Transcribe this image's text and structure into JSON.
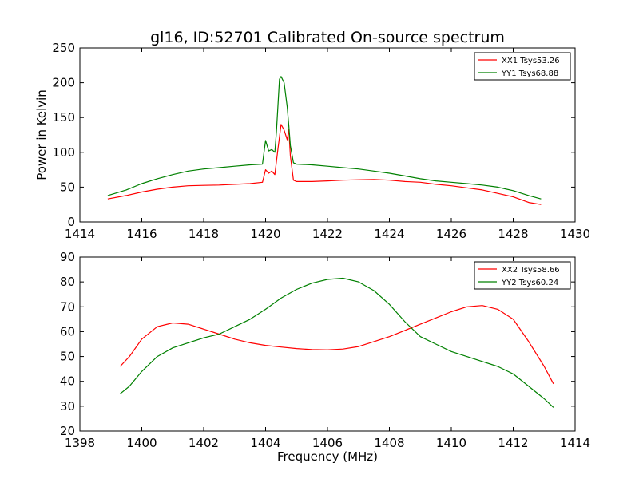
{
  "figure": {
    "title": "gl16, ID:52701 Calibrated On-source spectrum",
    "ylabel": "Power in Kelvin",
    "xlabel": "Frequency (MHz)"
  },
  "chart_data": [
    {
      "type": "line",
      "title": "gl16, ID:52701 Calibrated On-source spectrum",
      "xlabel": "",
      "ylabel": "Power in Kelvin",
      "xlim": [
        1414,
        1430
      ],
      "ylim": [
        0,
        250
      ],
      "xticks": [
        1414,
        1416,
        1418,
        1420,
        1422,
        1424,
        1426,
        1428,
        1430
      ],
      "yticks": [
        0,
        50,
        100,
        150,
        200,
        250
      ],
      "grid": false,
      "legend_position": "top-right",
      "series": [
        {
          "name": "XX1 Tsys53.26",
          "color": "#ff0000",
          "points": [
            [
              1414.9,
              33
            ],
            [
              1415.5,
              38
            ],
            [
              1416,
              43
            ],
            [
              1416.5,
              47
            ],
            [
              1417,
              50
            ],
            [
              1417.5,
              52
            ],
            [
              1418,
              52.5
            ],
            [
              1418.5,
              53
            ],
            [
              1419,
              54
            ],
            [
              1419.5,
              55
            ],
            [
              1419.9,
              57
            ],
            [
              1420.0,
              75
            ],
            [
              1420.1,
              70
            ],
            [
              1420.2,
              73
            ],
            [
              1420.3,
              68
            ],
            [
              1420.4,
              105
            ],
            [
              1420.5,
              140
            ],
            [
              1420.6,
              132
            ],
            [
              1420.7,
              118
            ],
            [
              1420.75,
              133
            ],
            [
              1420.8,
              95
            ],
            [
              1420.9,
              60
            ],
            [
              1421,
              58
            ],
            [
              1421.5,
              58
            ],
            [
              1422,
              59
            ],
            [
              1422.5,
              60
            ],
            [
              1423,
              60.5
            ],
            [
              1423.5,
              61
            ],
            [
              1424,
              60
            ],
            [
              1424.5,
              58
            ],
            [
              1425,
              57
            ],
            [
              1425.5,
              54
            ],
            [
              1426,
              52
            ],
            [
              1426.5,
              49
            ],
            [
              1427,
              46
            ],
            [
              1427.5,
              41
            ],
            [
              1428,
              36
            ],
            [
              1428.5,
              28
            ],
            [
              1428.9,
              25
            ]
          ]
        },
        {
          "name": "YY1 Tsys68.88",
          "color": "#008000",
          "points": [
            [
              1414.9,
              38
            ],
            [
              1415.5,
              46
            ],
            [
              1416,
              55
            ],
            [
              1416.5,
              62
            ],
            [
              1417,
              68
            ],
            [
              1417.5,
              73
            ],
            [
              1418,
              76
            ],
            [
              1418.5,
              78
            ],
            [
              1419,
              80
            ],
            [
              1419.5,
              82
            ],
            [
              1419.9,
              83
            ],
            [
              1420.0,
              117
            ],
            [
              1420.1,
              102
            ],
            [
              1420.2,
              104
            ],
            [
              1420.3,
              100
            ],
            [
              1420.35,
              130
            ],
            [
              1420.45,
              205
            ],
            [
              1420.5,
              209
            ],
            [
              1420.6,
              200
            ],
            [
              1420.7,
              165
            ],
            [
              1420.75,
              138
            ],
            [
              1420.8,
              110
            ],
            [
              1420.9,
              85
            ],
            [
              1421,
              83
            ],
            [
              1421.5,
              82
            ],
            [
              1422,
              80
            ],
            [
              1422.5,
              78
            ],
            [
              1423,
              76
            ],
            [
              1423.5,
              73
            ],
            [
              1424,
              70
            ],
            [
              1424.5,
              66
            ],
            [
              1425,
              62
            ],
            [
              1425.5,
              59
            ],
            [
              1426,
              57
            ],
            [
              1426.5,
              55
            ],
            [
              1427,
              53
            ],
            [
              1427.5,
              50
            ],
            [
              1428,
              45
            ],
            [
              1428.5,
              38
            ],
            [
              1428.9,
              33
            ]
          ]
        }
      ]
    },
    {
      "type": "line",
      "title": "",
      "xlabel": "Frequency (MHz)",
      "ylabel": "",
      "xlim": [
        1398,
        1414
      ],
      "ylim": [
        20,
        90
      ],
      "xticks": [
        1398,
        1400,
        1402,
        1404,
        1406,
        1408,
        1410,
        1412,
        1414
      ],
      "yticks": [
        20,
        30,
        40,
        50,
        60,
        70,
        80,
        90
      ],
      "grid": false,
      "legend_position": "top-right",
      "series": [
        {
          "name": "XX2 Tsys58.66",
          "color": "#ff0000",
          "points": [
            [
              1399.3,
              46
            ],
            [
              1399.6,
              50
            ],
            [
              1400,
              57
            ],
            [
              1400.5,
              62
            ],
            [
              1401,
              63.5
            ],
            [
              1401.5,
              63
            ],
            [
              1402,
              61
            ],
            [
              1402.5,
              59
            ],
            [
              1403,
              57
            ],
            [
              1403.5,
              55.5
            ],
            [
              1404,
              54.5
            ],
            [
              1404.5,
              53.8
            ],
            [
              1405,
              53.2
            ],
            [
              1405.5,
              52.8
            ],
            [
              1406,
              52.7
            ],
            [
              1406.5,
              53
            ],
            [
              1407,
              54
            ],
            [
              1407.5,
              56
            ],
            [
              1408,
              58
            ],
            [
              1408.5,
              60.5
            ],
            [
              1409,
              63
            ],
            [
              1409.5,
              65.5
            ],
            [
              1410,
              68
            ],
            [
              1410.5,
              70
            ],
            [
              1411,
              70.5
            ],
            [
              1411.5,
              69
            ],
            [
              1412,
              65
            ],
            [
              1412.5,
              56
            ],
            [
              1413,
              46
            ],
            [
              1413.3,
              39
            ]
          ]
        },
        {
          "name": "YY2 Tsys60.24",
          "color": "#008000",
          "points": [
            [
              1399.3,
              35
            ],
            [
              1399.6,
              38
            ],
            [
              1400,
              44
            ],
            [
              1400.5,
              50
            ],
            [
              1401,
              53.5
            ],
            [
              1401.5,
              55.5
            ],
            [
              1402,
              57.5
            ],
            [
              1402.5,
              59
            ],
            [
              1403,
              62
            ],
            [
              1403.5,
              65
            ],
            [
              1404,
              69
            ],
            [
              1404.5,
              73.5
            ],
            [
              1405,
              77
            ],
            [
              1405.5,
              79.5
            ],
            [
              1406,
              81
            ],
            [
              1406.5,
              81.5
            ],
            [
              1407,
              80
            ],
            [
              1407.5,
              76.5
            ],
            [
              1408,
              71
            ],
            [
              1408.5,
              64
            ],
            [
              1409,
              58
            ],
            [
              1409.5,
              55
            ],
            [
              1410,
              52
            ],
            [
              1410.5,
              50
            ],
            [
              1411,
              48
            ],
            [
              1411.5,
              46
            ],
            [
              1412,
              43
            ],
            [
              1412.5,
              38
            ],
            [
              1413,
              33
            ],
            [
              1413.3,
              29.5
            ]
          ]
        }
      ]
    }
  ]
}
